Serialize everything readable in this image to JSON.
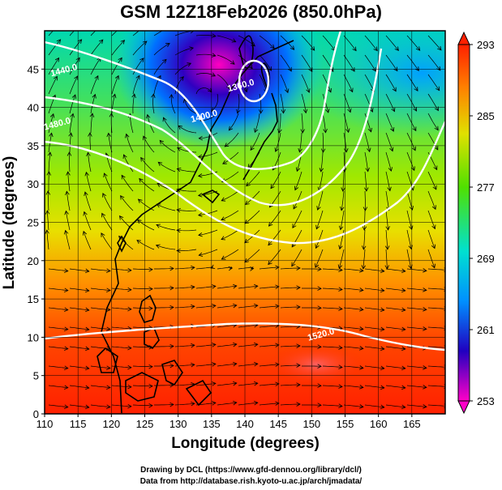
{
  "title": "GSM 12Z18Feb2026 (850.0hPa)",
  "xlabel": "Longitude (degrees)",
  "ylabel": "Latitude  (degrees)",
  "credits": {
    "line1": "Drawing by DCL (https://www.gfd-dennou.org/library/dcl/)",
    "line2": "Data from http://database.rish.kyoto-u.ac.jp/arch/jmadata/"
  },
  "chart_data": {
    "type": "heatmap",
    "xlim": [
      110,
      170
    ],
    "ylim": [
      0,
      50
    ],
    "x_ticks": [
      110,
      115,
      120,
      125,
      130,
      135,
      140,
      145,
      150,
      155,
      160,
      165
    ],
    "y_ticks": [
      0,
      5,
      10,
      15,
      20,
      25,
      30,
      35,
      40,
      45
    ],
    "colorbar": {
      "min": 253,
      "max": 293,
      "tick_labels": [
        "293",
        "285",
        "277",
        "269",
        "261",
        "253"
      ],
      "colors": [
        "#ff00c8",
        "#2000c0",
        "#0090ff",
        "#00e0d0",
        "#50e000",
        "#e0e000",
        "#ff8000",
        "#ff2000"
      ]
    },
    "contour_labels": [
      {
        "text": "1360.0",
        "lon": 139.5,
        "lat": 42.5
      },
      {
        "text": "1400.0",
        "lon": 134.0,
        "lat": 38.5
      },
      {
        "text": "1440.0",
        "lon": 113.0,
        "lat": 44.5
      },
      {
        "text": "1480.0",
        "lon": 112.0,
        "lat": 37.5
      },
      {
        "text": "1520.0",
        "lon": 151.5,
        "lat": 10.0
      }
    ],
    "grid": true
  }
}
